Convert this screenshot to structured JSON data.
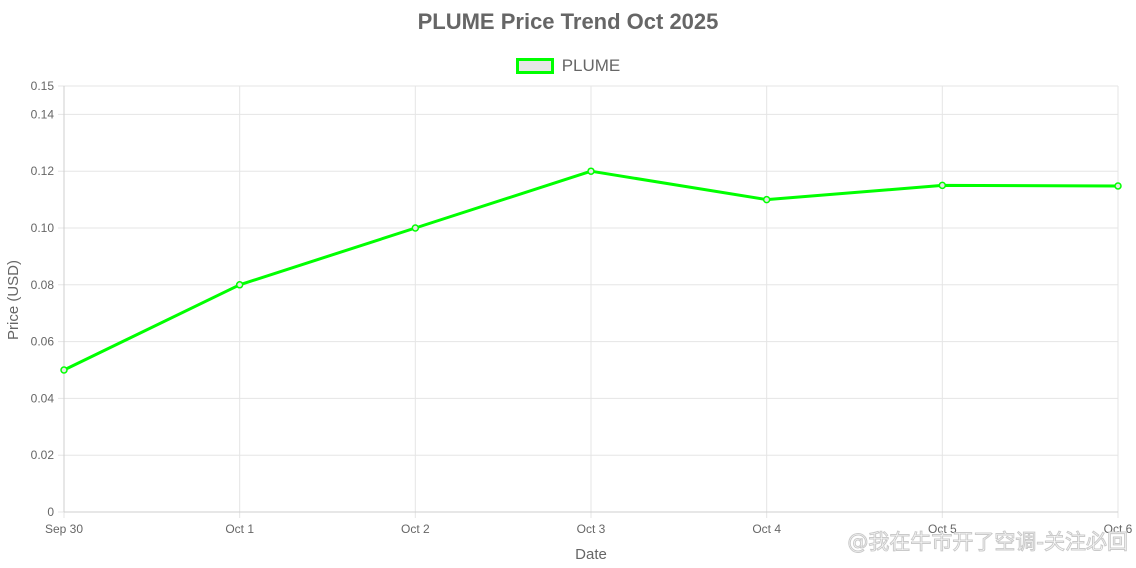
{
  "chart_data": {
    "type": "line",
    "title": "PLUME Price Trend Oct 2025",
    "xlabel": "Date",
    "ylabel": "Price (USD)",
    "categories": [
      "Sep 30",
      "Oct 1",
      "Oct 2",
      "Oct 3",
      "Oct 4",
      "Oct 5",
      "Oct 6"
    ],
    "series": [
      {
        "name": "PLUME",
        "values": [
          0.05,
          0.08,
          0.1,
          0.12,
          0.11,
          0.115,
          0.1148
        ],
        "color": "#00ff00",
        "fill": "#e6e6e6"
      }
    ],
    "ylim": [
      0,
      0.15
    ],
    "yticks": [
      "0",
      "0.02",
      "0.04",
      "0.06",
      "0.08",
      "0.10",
      "0.12",
      "0.14",
      "0.15"
    ],
    "ytick_values": [
      0,
      0.02,
      0.04,
      0.06,
      0.08,
      0.1,
      0.12,
      0.14,
      0.15
    ],
    "grid": true,
    "legend": "top-center"
  },
  "watermark": "@我在牛市开了空调-关注必回"
}
